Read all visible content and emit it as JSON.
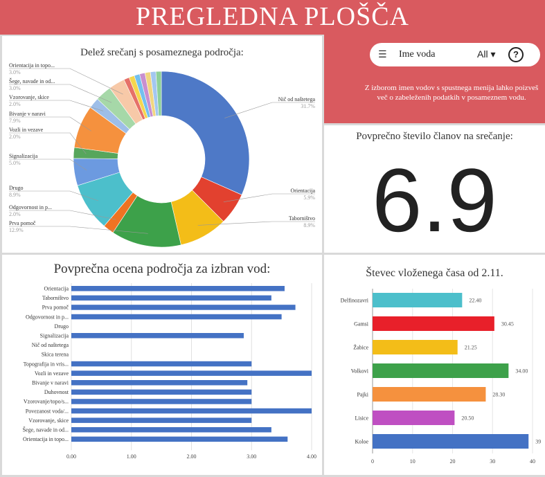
{
  "header": {
    "title": "PREGLEDNA PLOŠČA"
  },
  "filter": {
    "label": "Ime voda",
    "value": "All ▾",
    "help": "?",
    "icon": "filter-icon"
  },
  "info_text": "Z izborom imen vodov s spustnega menija lahko poizveš več o zabeleženih podatkih v posameznem vodu.",
  "kpi": {
    "title": "Povprečno število članov na srečanje:",
    "value": "6.9"
  },
  "chart_data": [
    {
      "type": "pie",
      "title": "Delež srečanj s posameznega področja:",
      "labels": [
        "Nič od naštetega",
        "Orientacija",
        "Taborništvo",
        "Prva pomoč",
        "Odgovornost in p...",
        "Drugo",
        "Signalizacija",
        "Vozli in vezave",
        "Bivanje v naravi",
        "Vzorovanje, skice",
        "Šege, navade in od...",
        "Orientacija in topo..."
      ],
      "values": [
        31.7,
        5.9,
        8.9,
        12.9,
        2.0,
        8.9,
        5.0,
        2.0,
        7.9,
        2.0,
        3.0,
        3.0
      ],
      "value_labels": [
        "31.7%",
        "5.9%",
        "8.9%",
        "12.9%",
        "2.0%",
        "8.9%",
        "5.0%",
        "2.0%",
        "7.9%",
        "2.0%",
        "3.0%",
        "3.0%"
      ],
      "colors": [
        "#4e79c7",
        "#e2412f",
        "#f3bd18",
        "#3da14a",
        "#ee7322",
        "#4cbfcb",
        "#6c9ae0",
        "#57a65c",
        "#f5913e",
        "#9ebee8",
        "#a6d8a8",
        "#f7c9a8"
      ],
      "extra_slices": [
        {
          "value": 1.0,
          "color": "#e67168"
        },
        {
          "value": 1.0,
          "color": "#f5d64e"
        },
        {
          "value": 1.0,
          "color": "#73c0ee"
        },
        {
          "value": 1.0,
          "color": "#c88fd0"
        },
        {
          "value": 1.0,
          "color": "#f1d680"
        },
        {
          "value": 1.0,
          "color": "#a3c7f0"
        },
        {
          "value": 1.0,
          "color": "#8fd09a"
        }
      ]
    },
    {
      "type": "bar",
      "orientation": "horizontal",
      "title": "Povprečna ocena področja za izbran vod:",
      "categories": [
        "Orientacija",
        "Taborništvo",
        "Prva pomoč",
        "Odgovornost in p...",
        "Drugo",
        "Signalizacija",
        "Nič od naštetega",
        "Skica terena",
        "Topografija in vris...",
        "Vozli in vezave",
        "Bivanje v naravi",
        "Duhovnost",
        "Vzorovanje/topo/s...",
        "Povezanost voda/...",
        "Vzorovanje, skice",
        "Šege, navade in od...",
        "Orientacija in topo..."
      ],
      "values": [
        3.55,
        3.33,
        3.73,
        3.5,
        0,
        2.87,
        0,
        0,
        3.0,
        4.0,
        2.93,
        3.0,
        3.0,
        4.0,
        3.0,
        3.33,
        3.6
      ],
      "xlim": [
        0,
        4
      ],
      "ticks": [
        "0.00",
        "1.00",
        "2.00",
        "3.00",
        "4.00"
      ],
      "color": "#4472c4"
    },
    {
      "type": "bar",
      "orientation": "horizontal",
      "title": "Števec vloženega časa od 2.11.",
      "categories": [
        "Delfinozavri",
        "Gamsi",
        "Žabice",
        "Volkovi",
        "Pajki",
        "Lisice",
        "Koloe"
      ],
      "values": [
        22.4,
        30.45,
        21.25,
        34.0,
        28.3,
        20.5,
        39
      ],
      "value_labels": [
        "22.40",
        "30.45",
        "21.25",
        "34.00",
        "28.30",
        "20.50",
        "39"
      ],
      "colors": [
        "#4cbfcb",
        "#e8202a",
        "#f3bd18",
        "#3da14a",
        "#f5913e",
        "#bf4fc2",
        "#4472c4"
      ],
      "xlim": [
        0,
        40
      ],
      "ticks": [
        "0",
        "10",
        "20",
        "30",
        "40"
      ]
    }
  ]
}
